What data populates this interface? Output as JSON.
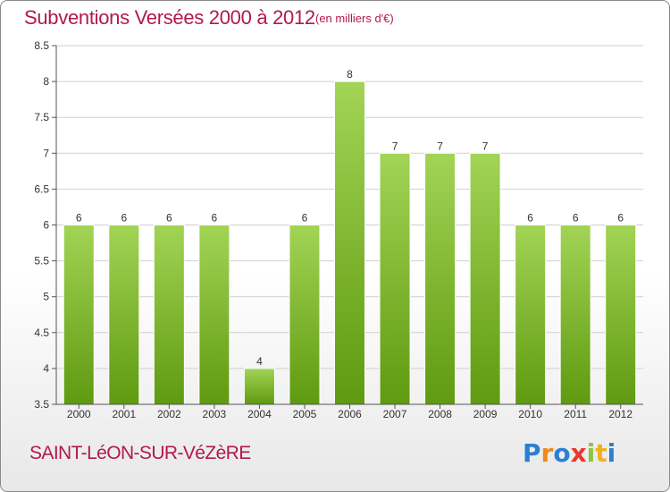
{
  "header": {
    "title": "Subventions Versées 2000 à 2012",
    "subtitle": "(en milliers d'€)"
  },
  "footer": {
    "commune": "SAINT-LéON-SUR-VéZèRE",
    "brand": "Proxiti"
  },
  "colors": {
    "title": "#b2184e",
    "bar_top": "#a2d455",
    "bar_bottom": "#5f9a10",
    "grid": "#cfcfcf"
  },
  "chart_data": {
    "type": "bar",
    "title": "Subventions Versées 2000 à 2012",
    "subtitle": "(en milliers d'€)",
    "categories": [
      "2000",
      "2001",
      "2002",
      "2003",
      "2004",
      "2005",
      "2006",
      "2007",
      "2008",
      "2009",
      "2010",
      "2011",
      "2012"
    ],
    "values": [
      6,
      6,
      6,
      6,
      4,
      6,
      8,
      7,
      7,
      7,
      6,
      6,
      6
    ],
    "value_labels": [
      "6",
      "6",
      "6",
      "6",
      "4",
      "6",
      "8",
      "7",
      "7",
      "7",
      "6",
      "6",
      "6"
    ],
    "ylim": [
      3.5,
      8.5
    ],
    "yticks": [
      "3.5",
      "4",
      "4.5",
      "5",
      "5.5",
      "6",
      "6.5",
      "7",
      "7.5",
      "8",
      "8.5"
    ],
    "grid": true,
    "legend": "none",
    "xlabel": "",
    "ylabel": ""
  }
}
